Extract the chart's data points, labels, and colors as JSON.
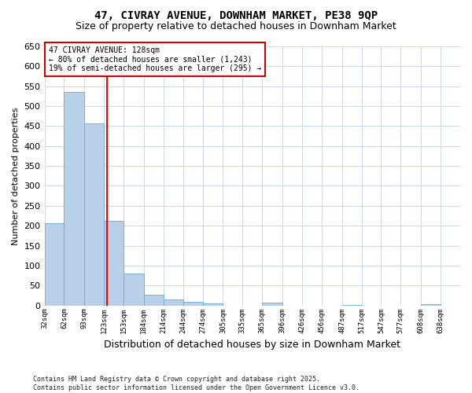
{
  "title": "47, CIVRAY AVENUE, DOWNHAM MARKET, PE38 9QP",
  "subtitle": "Size of property relative to detached houses in Downham Market",
  "xlabel": "Distribution of detached houses by size in Downham Market",
  "ylabel": "Number of detached properties",
  "bin_edges": [
    32,
    62,
    93,
    123,
    153,
    184,
    214,
    244,
    274,
    305,
    335,
    365,
    396,
    426,
    456,
    487,
    517,
    547,
    577,
    608,
    638,
    668
  ],
  "bar_values": [
    207,
    535,
    457,
    212,
    81,
    27,
    15,
    10,
    5,
    0,
    0,
    7,
    0,
    0,
    0,
    2,
    0,
    0,
    0,
    3,
    0
  ],
  "tick_labels": [
    "32sqm",
    "62sqm",
    "93sqm",
    "123sqm",
    "153sqm",
    "184sqm",
    "214sqm",
    "244sqm",
    "274sqm",
    "305sqm",
    "335sqm",
    "365sqm",
    "396sqm",
    "426sqm",
    "456sqm",
    "487sqm",
    "517sqm",
    "547sqm",
    "577sqm",
    "608sqm",
    "638sqm"
  ],
  "bar_color": "#b8d0e8",
  "bar_edge_color": "#6aaad4",
  "red_line_x": 128,
  "annotation_text": "47 CIVRAY AVENUE: 128sqm\n← 80% of detached houses are smaller (1,243)\n19% of semi-detached houses are larger (295) →",
  "annotation_box_color": "#ffffff",
  "annotation_box_edge": "#cc0000",
  "footer_line1": "Contains HM Land Registry data © Crown copyright and database right 2025.",
  "footer_line2": "Contains public sector information licensed under the Open Government Licence v3.0.",
  "ylim": [
    0,
    650
  ],
  "yticks": [
    0,
    50,
    100,
    150,
    200,
    250,
    300,
    350,
    400,
    450,
    500,
    550,
    600,
    650
  ],
  "bg_color": "#ffffff",
  "grid_color": "#c8d8ea",
  "title_fontsize": 10,
  "subtitle_fontsize": 9
}
